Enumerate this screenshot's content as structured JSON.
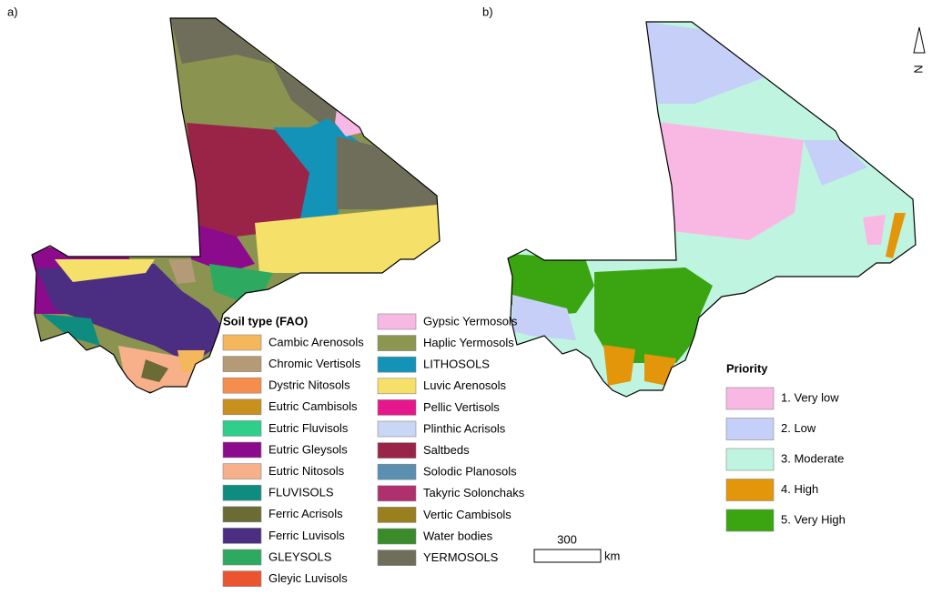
{
  "panels": [
    {
      "label": "a)"
    },
    {
      "label": "b)"
    }
  ],
  "soil_legend": {
    "title": "Soil type (FAO)",
    "items": [
      {
        "label": "Cambic Arenosols",
        "color": "#f5b75b"
      },
      {
        "label": "Chromic Vertisols",
        "color": "#b59a78"
      },
      {
        "label": "Dystric Nitosols",
        "color": "#f58d4d"
      },
      {
        "label": "Eutric Cambisols",
        "color": "#c8901c"
      },
      {
        "label": "Eutric Fluvisols",
        "color": "#2ecf8a"
      },
      {
        "label": "Eutric Gleysols",
        "color": "#8c0a8c"
      },
      {
        "label": "Eutric Nitosols",
        "color": "#f7b08a"
      },
      {
        "label": "FLUVISOLS",
        "color": "#0f8c80"
      },
      {
        "label": "Ferric Acrisols",
        "color": "#6b6b35"
      },
      {
        "label": "Ferric Luvisols",
        "color": "#4b2d82"
      },
      {
        "label": "GLEYSOLS",
        "color": "#2eaa60"
      },
      {
        "label": "Gleyic Luvisols",
        "color": "#ea5530"
      },
      {
        "label": "Gypsic Yermosols",
        "color": "#f7b8e3"
      },
      {
        "label": "Haplic Yermosols",
        "color": "#8c9650"
      },
      {
        "label": "LITHOSOLS",
        "color": "#1493b8"
      },
      {
        "label": "Luvic Arenosols",
        "color": "#f5e06a"
      },
      {
        "label": "Pellic Vertisols",
        "color": "#e6168c"
      },
      {
        "label": "Plinthic Acrisols",
        "color": "#c9d7f5"
      },
      {
        "label": "Saltbeds",
        "color": "#9a2448"
      },
      {
        "label": "Solodic Planosols",
        "color": "#5a8fb0"
      },
      {
        "label": "Takyric Solonchaks",
        "color": "#b0306e"
      },
      {
        "label": "Vertic Cambisols",
        "color": "#9a7f1e"
      },
      {
        "label": "Water bodies",
        "color": "#3a8c2a"
      },
      {
        "label": "YERMOSOLS",
        "color": "#6e6e5a"
      }
    ]
  },
  "priority_legend": {
    "title": "Priority",
    "items": [
      {
        "label": "1. Very low",
        "color": "#f9b8e3"
      },
      {
        "label": "2. Low",
        "color": "#c5cff7"
      },
      {
        "label": "3. Moderate",
        "color": "#bff5e0"
      },
      {
        "label": "4. High",
        "color": "#e3960a"
      },
      {
        "label": "5. Very High",
        "color": "#3aa510"
      }
    ]
  },
  "scale_bar": {
    "distance": "300",
    "unit": "km"
  },
  "north_arrow": "N"
}
